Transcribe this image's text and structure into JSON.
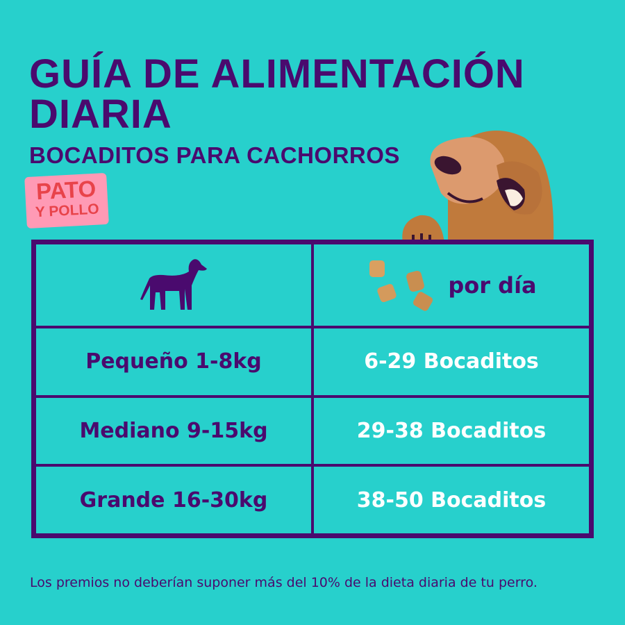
{
  "header": {
    "title_line1": "GUÍA DE ALIMENTACIÓN",
    "title_line2": "DIARIA",
    "subtitle": "BOCADITOS PARA CACHORROS"
  },
  "badge": {
    "line1": "PATO",
    "line2": "Y POLLO"
  },
  "table": {
    "header": {
      "left_icon": "dog-silhouette-icon",
      "right_icon": "treats-icon",
      "right_label": "por día"
    },
    "rows": [
      {
        "size": "Pequeño 1-8kg",
        "amount": "6-29 Bocaditos"
      },
      {
        "size": "Mediano 9-15kg",
        "amount": "29-38 Bocaditos"
      },
      {
        "size": "Grande 16-30kg",
        "amount": "38-50 Bocaditos"
      }
    ]
  },
  "footer": "Los premios no deberían suponer más del 10% de la dieta diaria de tu perro.",
  "colors": {
    "background": "#27d0cc",
    "primary": "#4a0a6e",
    "badge_bg": "#ff9ab5",
    "badge_text": "#e8434a"
  }
}
